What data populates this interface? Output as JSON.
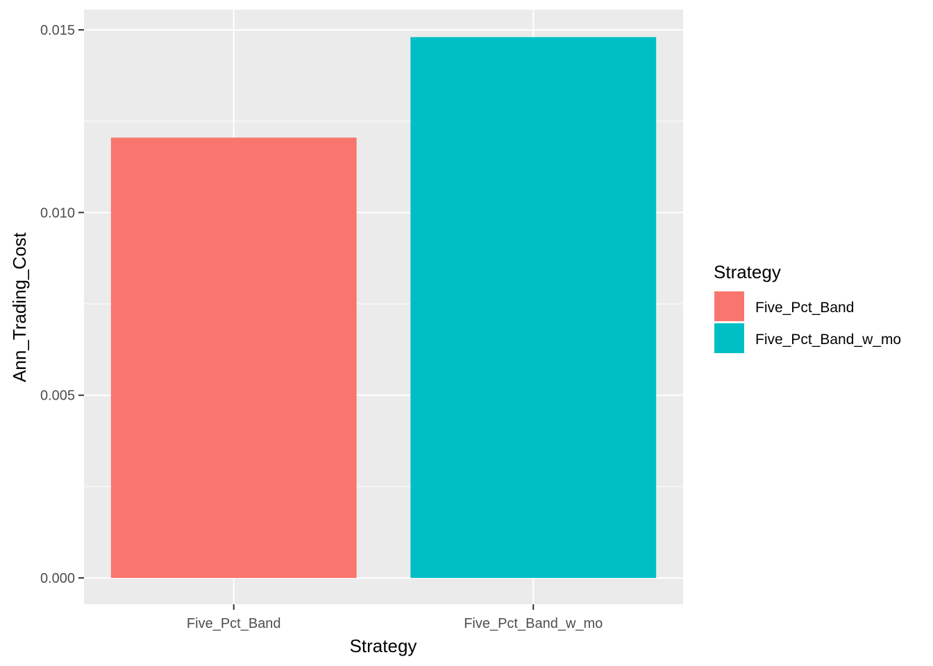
{
  "chart_data": {
    "type": "bar",
    "categories": [
      "Five_Pct_Band",
      "Five_Pct_Band_w_mo"
    ],
    "values": [
      0.01205,
      0.0148
    ],
    "colors": [
      "#F8766D",
      "#00BFC4"
    ],
    "xlabel": "Strategy",
    "ylabel": "Ann_Trading_Cost",
    "ylim": [
      -0.00072,
      0.01555
    ],
    "yticks": [
      0.0,
      0.005,
      0.01,
      0.015
    ],
    "ytick_labels": [
      "0.000",
      "0.005",
      "0.010",
      "0.015"
    ],
    "grid": true,
    "legend": {
      "title": "Strategy",
      "position": "right",
      "entries": [
        "Five_Pct_Band",
        "Five_Pct_Band_w_mo"
      ]
    },
    "panel_background": "#EBEBEB"
  }
}
